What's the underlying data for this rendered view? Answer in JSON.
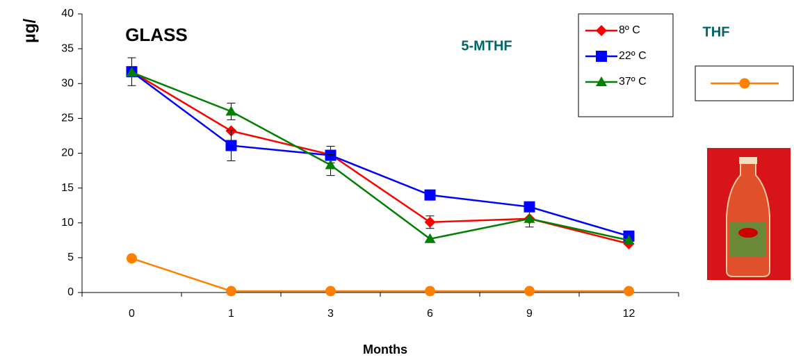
{
  "chart_data": {
    "type": "line",
    "title": "GLASS",
    "annotations": [
      "5-MTHF",
      "THF"
    ],
    "x_label": "Months",
    "y_label": "µg/",
    "categories": [
      "0",
      "1",
      "3",
      "6",
      "9",
      "12"
    ],
    "ylim": [
      0,
      40
    ],
    "yticks": [
      0,
      5,
      10,
      15,
      20,
      25,
      30,
      35,
      40
    ],
    "legend": "upper right",
    "series": [
      {
        "name": "8º C",
        "color": "#ff0000",
        "marker": "diamond",
        "values": [
          31.7,
          23.2,
          19.8,
          10.1,
          10.6,
          7.0
        ],
        "errors": [
          2.0,
          null,
          1.2,
          0.9,
          1.2,
          null
        ]
      },
      {
        "name": "22º C",
        "color": "#0000ff",
        "marker": "square",
        "values": [
          31.7,
          21.1,
          19.7,
          14.0,
          12.3,
          8.1
        ],
        "errors": [
          null,
          2.2,
          null,
          null,
          null,
          null
        ]
      },
      {
        "name": "37º C",
        "color": "#008000",
        "marker": "triangle",
        "values": [
          31.6,
          26.0,
          18.3,
          7.7,
          10.6,
          7.5
        ],
        "errors": [
          null,
          1.2,
          1.5,
          null,
          null,
          null
        ]
      },
      {
        "color": "#ff7f00",
        "marker": "circle",
        "values": [
          4.9,
          0.2,
          0.2,
          0.2,
          0.2,
          0.2
        ]
      }
    ]
  }
}
